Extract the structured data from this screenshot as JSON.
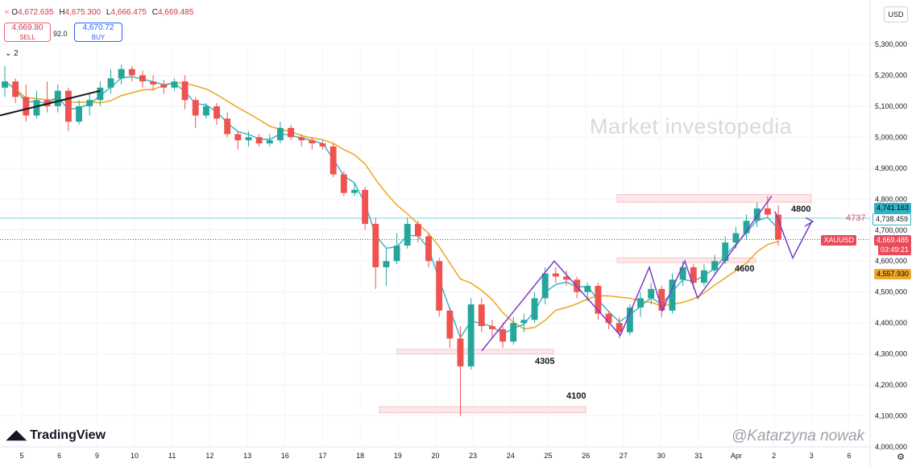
{
  "header": {
    "ohlc_icon": "exchange-icon",
    "open_label": "O",
    "open": "4,672.635",
    "high_label": "H",
    "high": "4,675.300",
    "low_label": "L",
    "low": "4,666.475",
    "close_label": "C",
    "close": "4,669.485",
    "sell_price": "4,669.80",
    "sell_label": "SELL",
    "spread": "92.0",
    "buy_price": "4,670.72",
    "buy_label": "BUY",
    "currency": "USD",
    "indicator_toggle": "⌄ 2"
  },
  "watermark": "Market investopedia",
  "branding": {
    "logo_text": "TradingView",
    "author": "@Katarzyna nowak"
  },
  "annotations": {
    "zone_4800": "4800",
    "zone_4737": "4737",
    "zone_4600": "4600",
    "zone_4305": "4305",
    "zone_4100": "4100"
  },
  "price_tags": {
    "upper": "4,741.163",
    "line": "4,738.459",
    "symbol": "XAUUSD",
    "current": "4,669.485",
    "countdown": "03:49:21",
    "ma": "4,557.930"
  },
  "colors": {
    "up": "#26a69a",
    "down": "#ef5350",
    "fast_ma": "#2fb3c6",
    "slow_ma": "#f0a92c",
    "projection": "#7e3bc7",
    "zone": "#f6c4c6"
  },
  "chart_data": {
    "type": "candlestick",
    "symbol": "XAUUSD",
    "y_ticks": [
      5300000,
      5200000,
      5100000,
      5000000,
      4900000,
      4800000,
      4700000,
      4600000,
      4500000,
      4400000,
      4300000,
      4200000,
      4100000,
      4000000
    ],
    "y_tick_labels": [
      "5,300,000",
      "5,200,000",
      "5,100,000",
      "5,000,000",
      "4,900,000",
      "4,800,000",
      "4,700,000",
      "4,600,000",
      "4,500,000",
      "4,400,000",
      "4,300,000",
      "4,200,000",
      "4,100,000",
      "4,000,000"
    ],
    "ylim": [
      4000000,
      5300000
    ],
    "x_tick_labels": [
      "5",
      "6",
      "9",
      "10",
      "11",
      "12",
      "13",
      "16",
      "17",
      "18",
      "19",
      "20",
      "23",
      "24",
      "25",
      "26",
      "27",
      "30",
      "31",
      "Apr",
      "2",
      "3",
      "6"
    ],
    "candles": [
      {
        "o": 5160000,
        "h": 5230000,
        "l": 5130000,
        "c": 5180000
      },
      {
        "o": 5180000,
        "h": 5190000,
        "l": 5110000,
        "c": 5130000
      },
      {
        "o": 5130000,
        "h": 5170000,
        "l": 5050000,
        "c": 5070000
      },
      {
        "o": 5070000,
        "h": 5150000,
        "l": 5060000,
        "c": 5120000
      },
      {
        "o": 5120000,
        "h": 5180000,
        "l": 5080000,
        "c": 5100000
      },
      {
        "o": 5100000,
        "h": 5170000,
        "l": 5080000,
        "c": 5150000
      },
      {
        "o": 5150000,
        "h": 5160000,
        "l": 5020000,
        "c": 5050000
      },
      {
        "o": 5050000,
        "h": 5120000,
        "l": 5040000,
        "c": 5100000
      },
      {
        "o": 5100000,
        "h": 5140000,
        "l": 5070000,
        "c": 5120000
      },
      {
        "o": 5120000,
        "h": 5180000,
        "l": 5100000,
        "c": 5160000
      },
      {
        "o": 5160000,
        "h": 5220000,
        "l": 5140000,
        "c": 5190000
      },
      {
        "o": 5190000,
        "h": 5235000,
        "l": 5170000,
        "c": 5220000
      },
      {
        "o": 5220000,
        "h": 5230000,
        "l": 5180000,
        "c": 5200000
      },
      {
        "o": 5200000,
        "h": 5215000,
        "l": 5160000,
        "c": 5180000
      },
      {
        "o": 5180000,
        "h": 5200000,
        "l": 5150000,
        "c": 5170000
      },
      {
        "o": 5170000,
        "h": 5185000,
        "l": 5140000,
        "c": 5160000
      },
      {
        "o": 5160000,
        "h": 5190000,
        "l": 5150000,
        "c": 5180000
      },
      {
        "o": 5180000,
        "h": 5200000,
        "l": 5090000,
        "c": 5120000
      },
      {
        "o": 5120000,
        "h": 5130000,
        "l": 5030000,
        "c": 5070000
      },
      {
        "o": 5070000,
        "h": 5110000,
        "l": 5060000,
        "c": 5100000
      },
      {
        "o": 5100000,
        "h": 5110000,
        "l": 5040000,
        "c": 5060000
      },
      {
        "o": 5060000,
        "h": 5080000,
        "l": 5000000,
        "c": 5010000
      },
      {
        "o": 5010000,
        "h": 5020000,
        "l": 4960000,
        "c": 4990000
      },
      {
        "o": 4990000,
        "h": 5020000,
        "l": 4970000,
        "c": 5000000
      },
      {
        "o": 5000000,
        "h": 5010000,
        "l": 4970000,
        "c": 4980000
      },
      {
        "o": 4980000,
        "h": 5010000,
        "l": 4970000,
        "c": 4990000
      },
      {
        "o": 4990000,
        "h": 5050000,
        "l": 4980000,
        "c": 5030000
      },
      {
        "o": 5030000,
        "h": 5040000,
        "l": 4990000,
        "c": 5000000
      },
      {
        "o": 5000000,
        "h": 5010000,
        "l": 4970000,
        "c": 4990000
      },
      {
        "o": 4990000,
        "h": 5000000,
        "l": 4960000,
        "c": 4980000
      },
      {
        "o": 4980000,
        "h": 4990000,
        "l": 4960000,
        "c": 4970000
      },
      {
        "o": 4970000,
        "h": 4980000,
        "l": 4870000,
        "c": 4880000
      },
      {
        "o": 4880000,
        "h": 4890000,
        "l": 4810000,
        "c": 4820000
      },
      {
        "o": 4820000,
        "h": 4850000,
        "l": 4810000,
        "c": 4830000
      },
      {
        "o": 4830000,
        "h": 4840000,
        "l": 4700000,
        "c": 4720000
      },
      {
        "o": 4720000,
        "h": 4740000,
        "l": 4510000,
        "c": 4580000
      },
      {
        "o": 4580000,
        "h": 4640000,
        "l": 4520000,
        "c": 4600000
      },
      {
        "o": 4600000,
        "h": 4690000,
        "l": 4590000,
        "c": 4650000
      },
      {
        "o": 4650000,
        "h": 4740000,
        "l": 4640000,
        "c": 4720000
      },
      {
        "o": 4720000,
        "h": 4730000,
        "l": 4660000,
        "c": 4680000
      },
      {
        "o": 4680000,
        "h": 4690000,
        "l": 4580000,
        "c": 4600000
      },
      {
        "o": 4600000,
        "h": 4610000,
        "l": 4420000,
        "c": 4440000
      },
      {
        "o": 4440000,
        "h": 4450000,
        "l": 4320000,
        "c": 4350000
      },
      {
        "o": 4350000,
        "h": 4390000,
        "l": 4100000,
        "c": 4260000
      },
      {
        "o": 4260000,
        "h": 4480000,
        "l": 4250000,
        "c": 4460000
      },
      {
        "o": 4460000,
        "h": 4480000,
        "l": 4370000,
        "c": 4390000
      },
      {
        "o": 4390000,
        "h": 4410000,
        "l": 4350000,
        "c": 4380000
      },
      {
        "o": 4380000,
        "h": 4400000,
        "l": 4320000,
        "c": 4340000
      },
      {
        "o": 4340000,
        "h": 4420000,
        "l": 4330000,
        "c": 4400000
      },
      {
        "o": 4400000,
        "h": 4430000,
        "l": 4370000,
        "c": 4410000
      },
      {
        "o": 4410000,
        "h": 4500000,
        "l": 4400000,
        "c": 4480000
      },
      {
        "o": 4480000,
        "h": 4580000,
        "l": 4460000,
        "c": 4560000
      },
      {
        "o": 4560000,
        "h": 4580000,
        "l": 4530000,
        "c": 4550000
      },
      {
        "o": 4550000,
        "h": 4570000,
        "l": 4520000,
        "c": 4540000
      },
      {
        "o": 4540000,
        "h": 4550000,
        "l": 4480000,
        "c": 4500000
      },
      {
        "o": 4500000,
        "h": 4530000,
        "l": 4470000,
        "c": 4520000
      },
      {
        "o": 4520000,
        "h": 4530000,
        "l": 4410000,
        "c": 4430000
      },
      {
        "o": 4430000,
        "h": 4440000,
        "l": 4380000,
        "c": 4400000
      },
      {
        "o": 4400000,
        "h": 4420000,
        "l": 4350000,
        "c": 4370000
      },
      {
        "o": 4370000,
        "h": 4460000,
        "l": 4360000,
        "c": 4450000
      },
      {
        "o": 4450000,
        "h": 4500000,
        "l": 4420000,
        "c": 4480000
      },
      {
        "o": 4480000,
        "h": 4530000,
        "l": 4460000,
        "c": 4510000
      },
      {
        "o": 4510000,
        "h": 4520000,
        "l": 4420000,
        "c": 4440000
      },
      {
        "o": 4440000,
        "h": 4560000,
        "l": 4430000,
        "c": 4540000
      },
      {
        "o": 4540000,
        "h": 4600000,
        "l": 4520000,
        "c": 4580000
      },
      {
        "o": 4580000,
        "h": 4590000,
        "l": 4510000,
        "c": 4530000
      },
      {
        "o": 4530000,
        "h": 4590000,
        "l": 4520000,
        "c": 4570000
      },
      {
        "o": 4570000,
        "h": 4620000,
        "l": 4560000,
        "c": 4600000
      },
      {
        "o": 4600000,
        "h": 4680000,
        "l": 4590000,
        "c": 4660000
      },
      {
        "o": 4660000,
        "h": 4710000,
        "l": 4640000,
        "c": 4690000
      },
      {
        "o": 4690000,
        "h": 4750000,
        "l": 4670000,
        "c": 4730000
      },
      {
        "o": 4730000,
        "h": 4790000,
        "l": 4710000,
        "c": 4770000
      },
      {
        "o": 4770000,
        "h": 4810000,
        "l": 4740000,
        "c": 4750000
      },
      {
        "o": 4750000,
        "h": 4780000,
        "l": 4650000,
        "c": 4669485
      }
    ]
  }
}
